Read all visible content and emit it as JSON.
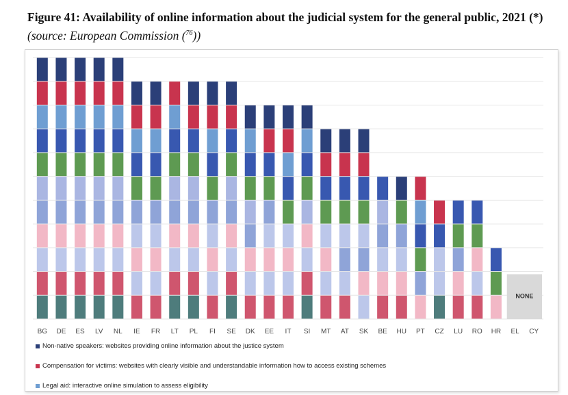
{
  "title": {
    "figure": "Figure 41",
    "main": ": Availability of online information about the judicial system for the general public, 2021",
    "asterisk": " (*)",
    "source_prefix": " (source: European Commission (",
    "source_ref": "76",
    "source_suffix": "))"
  },
  "chart_data": {
    "type": "bar",
    "stacked": true,
    "categories": [
      "BG",
      "DE",
      "ES",
      "LV",
      "NL",
      "IE",
      "FR",
      "LT",
      "PL",
      "FI",
      "SE",
      "DK",
      "EE",
      "IT",
      "SI",
      "MT",
      "AT",
      "SK",
      "BE",
      "HU",
      "PT",
      "CZ",
      "LU",
      "RO",
      "HR",
      "EL",
      "CY"
    ],
    "ylim": [
      0,
      11
    ],
    "grid": true,
    "legend_position": "bottom",
    "na_labels": [
      {
        "category": "EL",
        "text": "NONE"
      }
    ],
    "legend": [
      {
        "name": "Non-native speakers: websites providing online information about the justice system",
        "color": "#2b3f78"
      },
      {
        "name": "Compensation for victims: websites with clearly visible and understandable information how to access existing schemes",
        "color": "#c8344e"
      },
      {
        "name": "Legal aid: interactive online simulation to assess eligibility",
        "color": "#6f9ed2"
      }
    ],
    "bars": [
      [
        "#4e7c7c",
        "#cf566e",
        "#bcc7ea",
        "#f2b8c6",
        "#8fa4d8",
        "#aab6e2",
        "#5e9a52",
        "#3858b0",
        "#6f9ed2",
        "#c8344e",
        "#2b3f78"
      ],
      [
        "#4e7c7c",
        "#cf566e",
        "#bcc7ea",
        "#f2b8c6",
        "#8fa4d8",
        "#aab6e2",
        "#5e9a52",
        "#3858b0",
        "#6f9ed2",
        "#c8344e",
        "#2b3f78"
      ],
      [
        "#4e7c7c",
        "#cf566e",
        "#bcc7ea",
        "#f2b8c6",
        "#8fa4d8",
        "#aab6e2",
        "#5e9a52",
        "#3858b0",
        "#6f9ed2",
        "#c8344e",
        "#2b3f78"
      ],
      [
        "#4e7c7c",
        "#cf566e",
        "#bcc7ea",
        "#f2b8c6",
        "#8fa4d8",
        "#aab6e2",
        "#5e9a52",
        "#3858b0",
        "#6f9ed2",
        "#c8344e",
        "#2b3f78"
      ],
      [
        "#4e7c7c",
        "#cf566e",
        "#bcc7ea",
        "#f2b8c6",
        "#8fa4d8",
        "#aab6e2",
        "#5e9a52",
        "#3858b0",
        "#6f9ed2",
        "#c8344e",
        "#2b3f78"
      ],
      [
        "#cf566e",
        "#bcc7ea",
        "#f2b8c6",
        "#bcc7ea",
        "#8fa4d8",
        "#5e9a52",
        "#3858b0",
        "#6f9ed2",
        "#c8344e",
        "#2b3f78"
      ],
      [
        "#cf566e",
        "#bcc7ea",
        "#f2b8c6",
        "#bcc7ea",
        "#8fa4d8",
        "#5e9a52",
        "#3858b0",
        "#6f9ed2",
        "#c8344e",
        "#2b3f78"
      ],
      [
        "#4e7c7c",
        "#cf566e",
        "#bcc7ea",
        "#f2b8c6",
        "#8fa4d8",
        "#aab6e2",
        "#5e9a52",
        "#3858b0",
        "#6f9ed2",
        "#c8344e"
      ],
      [
        "#4e7c7c",
        "#cf566e",
        "#bcc7ea",
        "#f2b8c6",
        "#8fa4d8",
        "#aab6e2",
        "#5e9a52",
        "#3858b0",
        "#c8344e",
        "#2b3f78"
      ],
      [
        "#cf566e",
        "#bcc7ea",
        "#f2b8c6",
        "#bcc7ea",
        "#8fa4d8",
        "#5e9a52",
        "#3858b0",
        "#6f9ed2",
        "#c8344e",
        "#2b3f78"
      ],
      [
        "#4e7c7c",
        "#cf566e",
        "#bcc7ea",
        "#f2b8c6",
        "#8fa4d8",
        "#aab6e2",
        "#5e9a52",
        "#3858b0",
        "#c8344e",
        "#2b3f78"
      ],
      [
        "#cf566e",
        "#bcc7ea",
        "#f2b8c6",
        "#8fa4d8",
        "#aab6e2",
        "#5e9a52",
        "#3858b0",
        "#6f9ed2",
        "#2b3f78"
      ],
      [
        "#cf566e",
        "#bcc7ea",
        "#f2b8c6",
        "#bcc7ea",
        "#8fa4d8",
        "#5e9a52",
        "#3858b0",
        "#c8344e",
        "#2b3f78"
      ],
      [
        "#cf566e",
        "#bcc7ea",
        "#f2b8c6",
        "#bcc7ea",
        "#5e9a52",
        "#3858b0",
        "#6f9ed2",
        "#c8344e",
        "#2b3f78"
      ],
      [
        "#4e7c7c",
        "#cf566e",
        "#bcc7ea",
        "#f2b8c6",
        "#aab6e2",
        "#5e9a52",
        "#3858b0",
        "#6f9ed2",
        "#2b3f78"
      ],
      [
        "#cf566e",
        "#bcc7ea",
        "#f2b8c6",
        "#bcc7ea",
        "#5e9a52",
        "#3858b0",
        "#c8344e",
        "#2b3f78"
      ],
      [
        "#cf566e",
        "#bcc7ea",
        "#8fa4d8",
        "#bcc7ea",
        "#5e9a52",
        "#3858b0",
        "#c8344e",
        "#2b3f78"
      ],
      [
        "#bcc7ea",
        "#f2b8c6",
        "#8fa4d8",
        "#bcc7ea",
        "#5e9a52",
        "#3858b0",
        "#c8344e",
        "#2b3f78"
      ],
      [
        "#cf566e",
        "#f2b8c6",
        "#bcc7ea",
        "#8fa4d8",
        "#aab6e2",
        "#3858b0"
      ],
      [
        "#cf566e",
        "#f2b8c6",
        "#bcc7ea",
        "#8fa4d8",
        "#5e9a52",
        "#2b3f78"
      ],
      [
        "#f2b8c6",
        "#8fa4d8",
        "#5e9a52",
        "#3858b0",
        "#6f9ed2",
        "#c8344e"
      ],
      [
        "#4e7c7c",
        "#bcc7ea",
        "#bcc7ea",
        "#3858b0",
        "#c8344e"
      ],
      [
        "#cf566e",
        "#f2b8c6",
        "#8fa4d8",
        "#5e9a52",
        "#3858b0"
      ],
      [
        "#cf566e",
        "#bcc7ea",
        "#f2b8c6",
        "#5e9a52",
        "#3858b0"
      ],
      [
        "#f2b8c6",
        "#5e9a52",
        "#3858b0"
      ],
      [],
      []
    ]
  }
}
